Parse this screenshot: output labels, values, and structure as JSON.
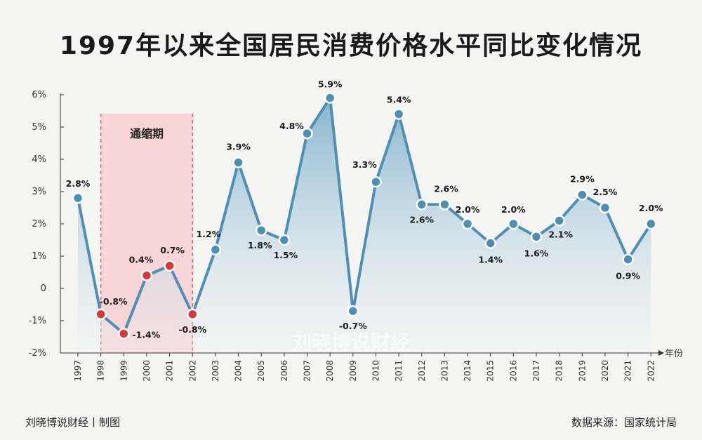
{
  "title": "1997年以来全国居民消费价格水平同比变化情况",
  "watermark": "刘晓博说财经",
  "footer": {
    "left": "刘晓博说财经丨制图",
    "right": "数据来源：国家统计局"
  },
  "colors": {
    "line": "#4f8fb3",
    "point_normal": "#4f8fb3",
    "point_deflation": "#d83a3a",
    "band_fill": "#f7cfd1",
    "band_border": "#e06464",
    "area_top": "#7fb1cc",
    "area_bottom": "#eef3f6"
  },
  "chart_data": {
    "type": "area",
    "xlabel": "年份",
    "ylabel": "",
    "x": [
      "1997",
      "1998",
      "1999",
      "2000",
      "2001",
      "2002",
      "2003",
      "2004",
      "2005",
      "2006",
      "2007",
      "2008",
      "2009",
      "2010",
      "2011",
      "2012",
      "2013",
      "2014",
      "2015",
      "2016",
      "2017",
      "2018",
      "2019",
      "2020",
      "2021",
      "2022"
    ],
    "series": [
      {
        "values": [
          2.8,
          -0.8,
          -1.4,
          0.4,
          0.7,
          -0.8,
          1.2,
          3.9,
          1.8,
          1.5,
          4.8,
          5.9,
          -0.7,
          3.3,
          5.4,
          2.6,
          2.6,
          2.0,
          1.4,
          2.0,
          1.6,
          2.1,
          2.9,
          2.5,
          0.9,
          2.0
        ]
      }
    ],
    "data_labels": [
      "2.8%",
      "-0.8%",
      "-1.4%",
      "0.4%",
      "0.7%",
      "-0.8%",
      "1.2%",
      "3.9%",
      "1.8%",
      "1.5%",
      "4.8%",
      "5.9%",
      "-0.7%",
      "3.3%",
      "5.4%",
      "2.6%",
      "2.6%",
      "2.0%",
      "1.4%",
      "2.0%",
      "1.6%",
      "2.1%",
      "2.9%",
      "2.5%",
      "0.9%",
      "2.0%"
    ],
    "ylim": [
      -2,
      6
    ],
    "yticks": [
      -2,
      -1,
      0,
      1,
      2,
      3,
      4,
      5,
      6
    ],
    "ytick_labels": [
      "-2%",
      "-1%",
      "0",
      "1%",
      "2%",
      "3%",
      "4%",
      "5%",
      "6%"
    ],
    "grid": false,
    "annotation": {
      "label": "通缩期",
      "start": "1998",
      "end": "2002"
    },
    "deflation_years": [
      "1998",
      "1999",
      "2000",
      "2001",
      "2002"
    ]
  }
}
